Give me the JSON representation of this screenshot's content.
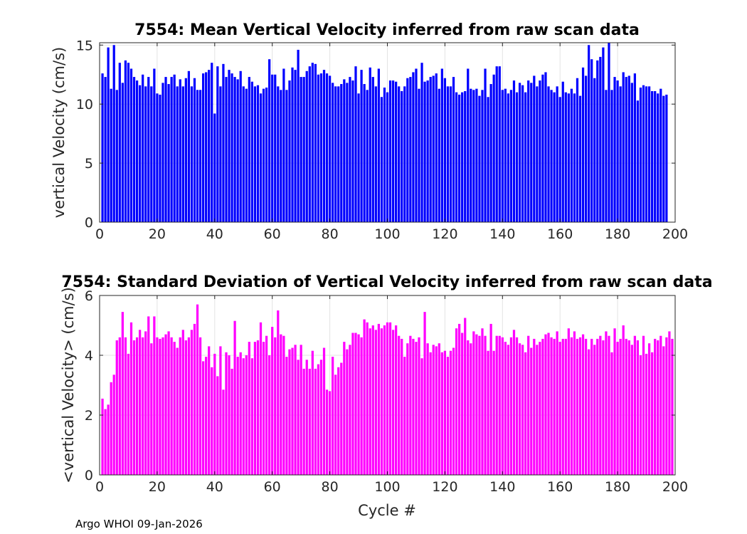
{
  "footer": "Argo WHOI 09-Jan-2026",
  "chart_data": [
    {
      "type": "bar",
      "title": "7554: Mean Vertical Velocity inferred from raw scan data",
      "xlabel": "",
      "ylabel": "vertical Velocity (cm/s)",
      "xlim": [
        0,
        200
      ],
      "ylim": [
        0,
        15.2
      ],
      "xticks": [
        0,
        20,
        40,
        60,
        80,
        100,
        120,
        140,
        160,
        180,
        200
      ],
      "yticks": [
        0,
        5,
        10,
        15
      ],
      "grid": true,
      "color": "#0000ff",
      "x_start": 1,
      "values": [
        12.6,
        12.3,
        14.8,
        11.3,
        15.0,
        11.2,
        13.5,
        11.8,
        13.7,
        13.5,
        13.0,
        12.3,
        12.0,
        11.6,
        12.5,
        11.5,
        12.3,
        11.5,
        13.0,
        10.9,
        10.8,
        11.8,
        12.3,
        11.7,
        12.3,
        12.5,
        11.5,
        12.1,
        11.5,
        12.2,
        12.8,
        11.5,
        12.2,
        11.2,
        11.2,
        12.6,
        12.7,
        12.9,
        13.5,
        9.2,
        13.2,
        11.5,
        13.4,
        12.3,
        12.9,
        12.6,
        12.3,
        12.1,
        12.8,
        11.5,
        11.3,
        12.3,
        11.9,
        11.5,
        11.6,
        10.9,
        11.3,
        11.4,
        13.8,
        12.5,
        12.5,
        11.5,
        11.2,
        13.0,
        11.2,
        12.0,
        13.1,
        12.9,
        14.6,
        12.3,
        12.3,
        12.8,
        13.2,
        13.5,
        13.4,
        12.5,
        12.6,
        12.9,
        12.6,
        12.4,
        11.8,
        11.5,
        11.5,
        11.7,
        12.1,
        11.8,
        12.3,
        12.0,
        13.2,
        10.9,
        12.9,
        11.7,
        11.2,
        13.1,
        12.3,
        11.5,
        13.0,
        10.6,
        11.4,
        11.0,
        12.0,
        12.0,
        11.9,
        11.5,
        11.1,
        11.5,
        12.2,
        12.3,
        12.7,
        13.0,
        11.3,
        13.5,
        11.9,
        12.0,
        12.3,
        12.4,
        12.6,
        11.3,
        13.0,
        12.2,
        11.5,
        11.5,
        12.3,
        11.0,
        10.8,
        11.0,
        11.1,
        13.0,
        11.3,
        11.2,
        11.3,
        10.7,
        11.2,
        13.0,
        10.6,
        11.7,
        12.5,
        13.2,
        13.2,
        11.2,
        11.3,
        10.9,
        11.2,
        12.0,
        11.0,
        11.8,
        11.6,
        11.0,
        12.0,
        11.8,
        12.4,
        11.5,
        12.0,
        12.5,
        12.7,
        11.5,
        11.2,
        11.0,
        11.5,
        10.6,
        11.9,
        11.0,
        10.9,
        11.3,
        10.9,
        12.2,
        10.7,
        13.1,
        12.4,
        15.0,
        13.8,
        12.2,
        13.7,
        14.0,
        14.8,
        11.2,
        15.2,
        11.2,
        12.3,
        12.0,
        11.5,
        12.7,
        12.3,
        12.4,
        11.8,
        12.6,
        10.3,
        11.4,
        11.6,
        11.5,
        11.5,
        11.1,
        11.1,
        10.9,
        11.3,
        10.7,
        10.8
      ]
    },
    {
      "type": "bar",
      "title": "7554: Standard Deviation of Vertical Velocity inferred from raw scan data",
      "xlabel": "Cycle #",
      "ylabel": "<vertical Velocity> (cm/s)",
      "xlim": [
        0,
        200
      ],
      "ylim": [
        0,
        6
      ],
      "xticks": [
        0,
        20,
        40,
        60,
        80,
        100,
        120,
        140,
        160,
        180,
        200
      ],
      "yticks": [
        0,
        2,
        4,
        6
      ],
      "grid": true,
      "color": "#ff00ff",
      "x_start": 1,
      "values": [
        2.55,
        2.2,
        2.35,
        3.1,
        3.35,
        4.5,
        4.6,
        5.45,
        4.6,
        4.05,
        5.1,
        4.5,
        4.6,
        4.85,
        4.6,
        4.8,
        5.3,
        4.4,
        5.3,
        4.6,
        4.55,
        4.6,
        4.7,
        4.8,
        4.6,
        4.45,
        4.25,
        4.6,
        4.85,
        4.5,
        4.6,
        4.85,
        5.05,
        5.7,
        4.6,
        3.8,
        3.95,
        4.3,
        3.6,
        4.05,
        3.3,
        4.3,
        2.85,
        4.1,
        4.0,
        3.55,
        5.15,
        3.95,
        4.1,
        3.9,
        4.0,
        4.45,
        3.9,
        4.45,
        4.5,
        5.1,
        4.45,
        4.65,
        4.0,
        4.95,
        4.6,
        5.5,
        4.7,
        4.65,
        3.95,
        4.2,
        4.25,
        4.35,
        3.85,
        4.35,
        3.55,
        3.85,
        3.55,
        4.15,
        3.55,
        3.7,
        3.85,
        4.25,
        2.85,
        2.8,
        3.95,
        3.35,
        3.6,
        3.75,
        4.45,
        4.2,
        4.35,
        4.75,
        4.75,
        4.7,
        4.6,
        5.2,
        5.1,
        4.9,
        5.0,
        4.85,
        5.05,
        4.9,
        5.0,
        5.1,
        5.1,
        4.85,
        5.0,
        4.65,
        4.55,
        3.95,
        4.4,
        4.65,
        4.55,
        4.45,
        4.6,
        3.9,
        5.45,
        4.4,
        4.1,
        4.35,
        4.3,
        4.4,
        4.1,
        4.15,
        3.95,
        4.15,
        4.25,
        4.9,
        5.05,
        4.75,
        5.25,
        4.5,
        4.4,
        4.8,
        4.7,
        4.65,
        4.9,
        4.65,
        4.15,
        5.05,
        4.15,
        4.65,
        4.65,
        4.6,
        4.45,
        4.35,
        4.6,
        4.85,
        4.6,
        4.4,
        4.35,
        4.1,
        4.65,
        4.25,
        4.55,
        4.35,
        4.45,
        4.55,
        4.7,
        4.75,
        4.6,
        4.55,
        4.8,
        4.45,
        4.55,
        4.55,
        4.9,
        4.6,
        4.8,
        4.55,
        4.6,
        4.7,
        4.55,
        4.2,
        4.55,
        4.35,
        4.55,
        4.65,
        4.5,
        4.8,
        4.65,
        4.1,
        4.9,
        4.45,
        4.55,
        5.0,
        4.55,
        4.5,
        4.35,
        4.65,
        4.5,
        4.0,
        4.65,
        4.05,
        4.4,
        4.1,
        4.55,
        4.5,
        4.65,
        4.3,
        4.6,
        4.8,
        4.55
      ]
    }
  ]
}
